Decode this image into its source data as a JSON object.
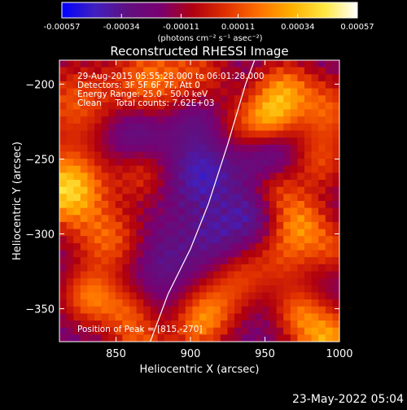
{
  "chart_data": {
    "type": "heatmap",
    "title": "Reconstructed RHESSI Image",
    "xlabel": "Heliocentric X (arcsec)",
    "ylabel": "Heliocentric Y (arcsec)",
    "xlim": [
      812,
      1000
    ],
    "ylim": [
      -372,
      -184
    ],
    "x_ticks": [
      850,
      900,
      950,
      1000
    ],
    "y_ticks": [
      -200,
      -250,
      -300,
      -350
    ],
    "colorbar": {
      "range": [
        -0.00057,
        0.00057
      ],
      "ticks": [
        "-0.00057",
        "-0.00034",
        "-0.00011",
        "0.00011",
        "0.00034",
        "0.00057"
      ],
      "label": "(photons cm⁻² s⁻¹ asec⁻²)",
      "colormap": [
        "#0000ff",
        "#4020c0",
        "#601080",
        "#7a0070",
        "#b00010",
        "#e03000",
        "#ff7000",
        "#ffb000",
        "#ffe840",
        "#ffffff"
      ]
    },
    "info_lines": [
      "29-Aug-2015 05:55:28.000 to 06:01:28.000",
      "Detectors: 3F 5F 6F 7F, Att 0",
      "Energy Range: 25.0 - 50.0 keV",
      "Clean     Total counts: 7.62E+03"
    ],
    "peak_text": "Position of Peak = [815,-270]",
    "peak": [
      815,
      -270
    ],
    "limb_curve": [
      [
        873,
        -372
      ],
      [
        885,
        -340
      ],
      [
        900,
        -310
      ],
      [
        912,
        -280
      ],
      [
        925,
        -240
      ],
      [
        937,
        -200
      ],
      [
        943,
        -184
      ]
    ],
    "grid": false
  },
  "footer_date": "23-May-2022 05:04"
}
